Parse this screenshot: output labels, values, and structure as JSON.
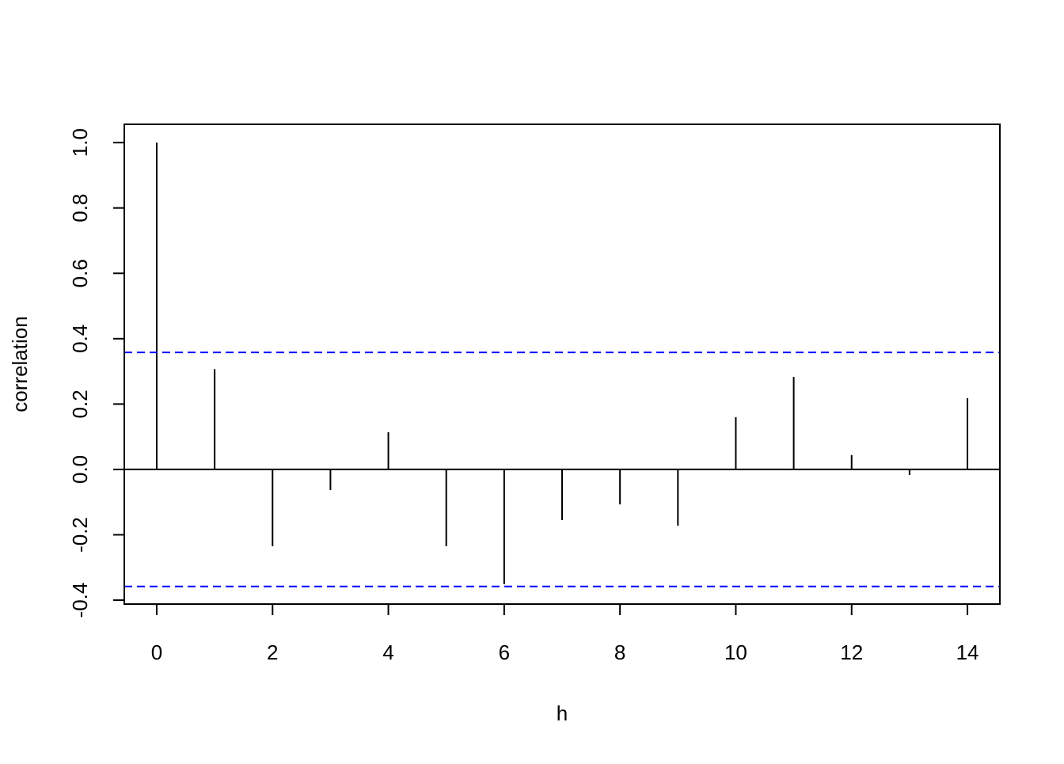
{
  "chart_data": {
    "type": "bar",
    "subtype": "acf-stem",
    "title": "",
    "xlabel": "h",
    "ylabel": "correlation",
    "x": [
      0,
      1,
      2,
      3,
      4,
      5,
      6,
      7,
      8,
      9,
      10,
      11,
      12,
      13,
      14
    ],
    "values": [
      1.0,
      0.307,
      -0.235,
      -0.063,
      0.114,
      -0.235,
      -0.351,
      -0.155,
      -0.107,
      -0.172,
      0.16,
      0.283,
      0.044,
      -0.017,
      0.218
    ],
    "xlim": [
      -0.56,
      14.56
    ],
    "ylim": [
      -0.412,
      1.056
    ],
    "xticks": [
      "0",
      "2",
      "4",
      "6",
      "8",
      "10",
      "12",
      "14"
    ],
    "yticks": [
      "-0.4",
      "-0.2",
      "0.0",
      "0.2",
      "0.4",
      "0.6",
      "0.8",
      "1.0"
    ],
    "confidence_bounds": [
      0.358,
      -0.358
    ],
    "colors": {
      "stems": "#000000",
      "bounds": "#0000ff"
    },
    "grid": false
  }
}
